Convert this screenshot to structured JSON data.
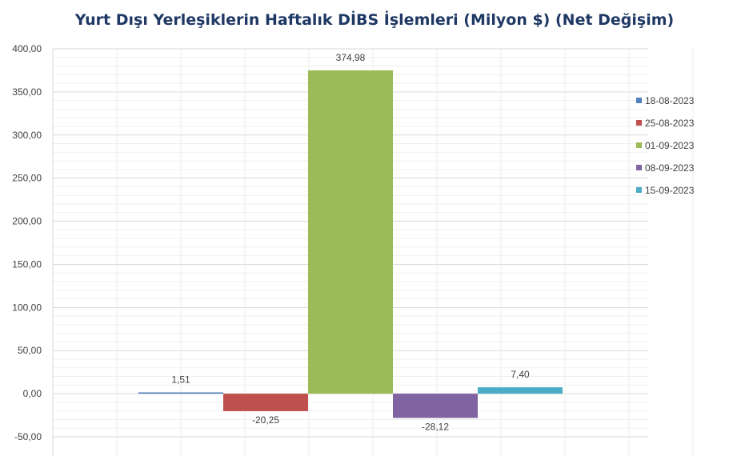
{
  "chart_data": {
    "type": "bar",
    "title": "Yurt Dışı Yerleşiklerin Haftalık DİBS İşlemleri (Milyon $) (Net Değişim)",
    "xlabel": "",
    "ylabel": "",
    "ylim": [
      -50,
      400
    ],
    "yticks": [
      -50,
      0,
      50,
      100,
      150,
      200,
      250,
      300,
      350,
      400
    ],
    "ytick_labels": [
      "-50,00",
      "0,00",
      "50,00",
      "100,00",
      "150,00",
      "200,00",
      "250,00",
      "300,00",
      "350,00",
      "400,00"
    ],
    "grid": true,
    "legend_position": "right",
    "series": [
      {
        "name": "18-08-2023",
        "value": 1.51,
        "label": "1,51",
        "color": "#4f81bd"
      },
      {
        "name": "25-08-2023",
        "value": -20.25,
        "label": "-20,25",
        "color": "#c0504d"
      },
      {
        "name": "01-09-2023",
        "value": 374.98,
        "label": "374,98",
        "color": "#9bbb59"
      },
      {
        "name": "08-09-2023",
        "value": -28.12,
        "label": "-28,12",
        "color": "#8064a2"
      },
      {
        "name": "15-09-2023",
        "value": 7.4,
        "label": "7,40",
        "color": "#4bacc6"
      }
    ]
  }
}
